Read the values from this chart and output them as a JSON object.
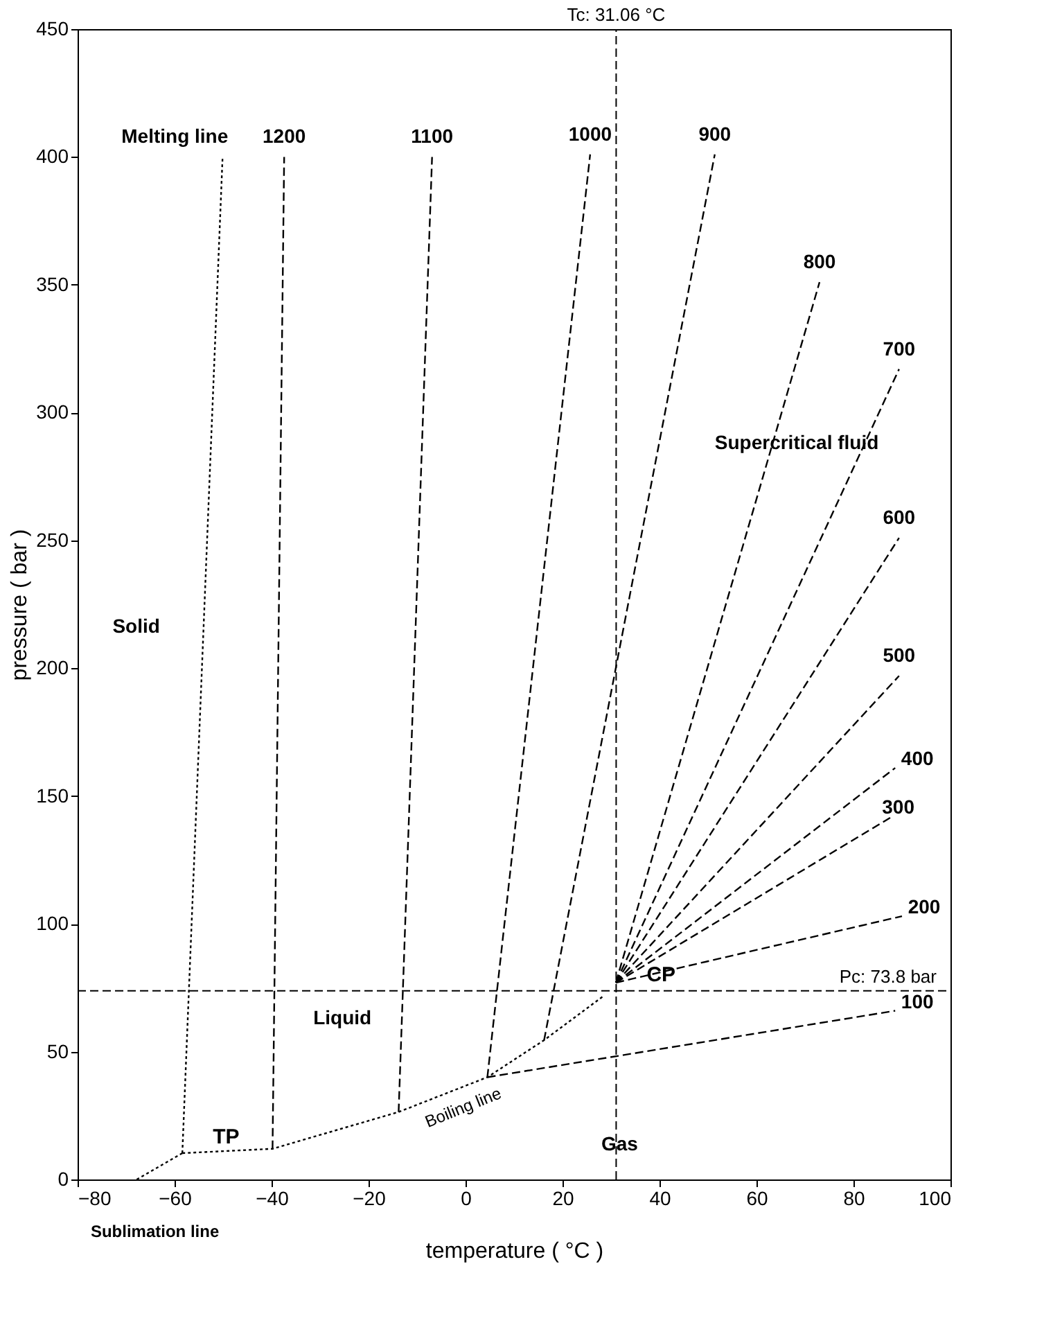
{
  "chart_data": {
    "type": "line",
    "xlabel": "temperature ( °C )",
    "ylabel": "pressure ( bar )",
    "xlim": [
      -80,
      100
    ],
    "ylim": [
      0,
      450
    ],
    "xticks": [
      -80,
      -60,
      -40,
      -20,
      0,
      20,
      40,
      60,
      80,
      100
    ],
    "yticks": [
      0,
      50,
      100,
      150,
      200,
      250,
      300,
      350,
      400,
      450
    ],
    "grid": false,
    "marker": "none",
    "line_style": "dashed",
    "series": [
      {
        "color": "#000000",
        "x": [
          -67.8,
          -58.4
        ],
        "values": [
          0,
          10.3
        ],
        "line_style": "dotted"
      },
      {
        "name": "Boiling line",
        "color": "#000000",
        "line_style": "dotted",
        "x": [
          -58.4,
          -39.8,
          -13.8,
          4.5,
          16.2,
          28.4
        ],
        "values": [
          10.3,
          12,
          26.4,
          40,
          54.5,
          71.7
        ]
      },
      {
        "name": "Melting line",
        "color": "#000000",
        "line_style": "dotted",
        "x": [
          -58.4,
          -50.1
        ],
        "values": [
          10.3,
          400
        ]
      },
      {
        "name": "1200",
        "color": "#000000",
        "x": [
          -39.8,
          -37.4
        ],
        "values": [
          12,
          400
        ]
      },
      {
        "name": "1100",
        "color": "#000000",
        "x": [
          -13.8,
          -6.9
        ],
        "values": [
          26.4,
          400
        ]
      },
      {
        "name": "1000",
        "color": "#000000",
        "x": [
          4.5,
          25.7
        ],
        "values": [
          40,
          401
        ]
      },
      {
        "name": "900",
        "color": "#000000",
        "x": [
          16.2,
          51.4
        ],
        "values": [
          54.5,
          401
        ]
      },
      {
        "name": "800",
        "color": "#000000",
        "x": [
          31,
          73
        ],
        "values": [
          77,
          351
        ]
      },
      {
        "name": "700",
        "color": "#000000",
        "x": [
          31,
          89.4
        ],
        "values": [
          77,
          317
        ]
      },
      {
        "name": "600",
        "color": "#000000",
        "x": [
          31,
          89.4
        ],
        "values": [
          77,
          251
        ]
      },
      {
        "name": "500",
        "color": "#000000",
        "x": [
          31,
          89.4
        ],
        "values": [
          77,
          197
        ]
      },
      {
        "name": "400",
        "color": "#000000",
        "x": [
          31,
          88.6
        ],
        "values": [
          77,
          161
        ]
      },
      {
        "name": "300",
        "color": "#000000",
        "x": [
          31,
          88
        ],
        "values": [
          77,
          142
        ]
      },
      {
        "name": "200",
        "color": "#000000",
        "x": [
          31,
          90
        ],
        "values": [
          77,
          103
        ]
      },
      {
        "name": "100",
        "color": "#000000",
        "x": [
          4.5,
          88.6
        ],
        "values": [
          40,
          66
        ]
      }
    ],
    "ref_lines": [
      {
        "axis": "x",
        "value": 31.06,
        "label": "Tc: 31.06 °C",
        "color": "#000000",
        "line_style": "dashed"
      },
      {
        "axis": "y",
        "value": 73.8,
        "label": "Pc: 73.8 bar",
        "color": "#000000",
        "line_style": "dashed"
      }
    ],
    "annotations": [
      {
        "text": "TP",
        "x": -58.4,
        "y": 10.3
      },
      {
        "text": "CP",
        "x": 31.06,
        "y": 73.8
      },
      "Solid",
      "Liquid",
      "Gas",
      "Supercritical fluid",
      "Sublimation line"
    ]
  }
}
